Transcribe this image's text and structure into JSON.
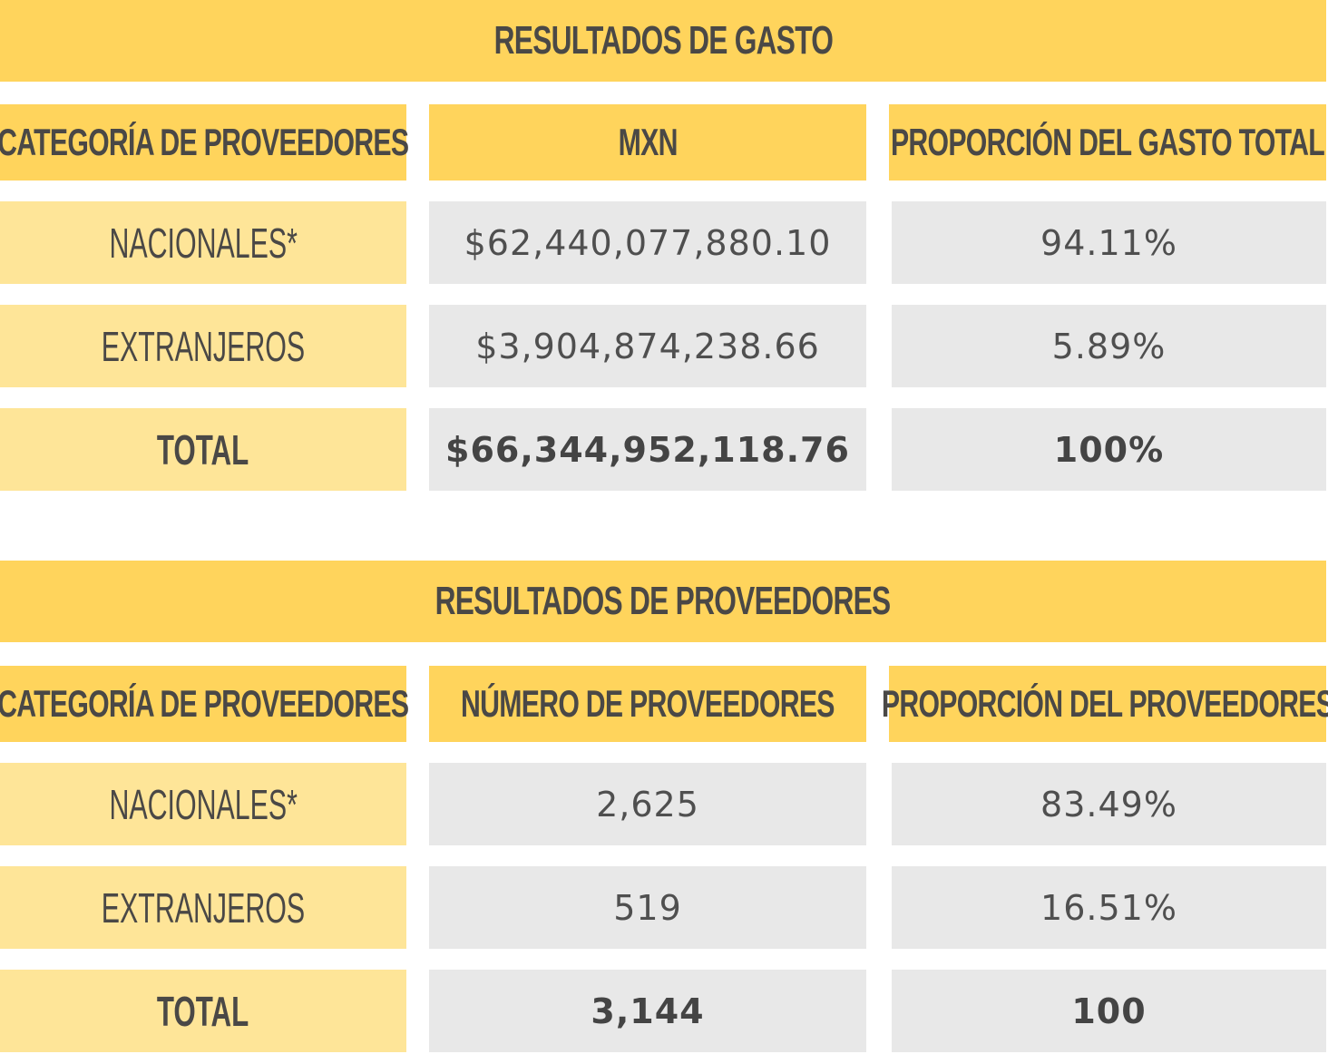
{
  "spend": {
    "title": "RESULTADOS DE GASTO",
    "headers": [
      "CATEGORÍA DE PROVEEDORES",
      "MXN",
      "PROPORCIÓN DEL GASTO TOTAL"
    ],
    "rows": [
      {
        "label": "NACIONALES*",
        "amount": "$62,440,077,880.10",
        "share": "94.11%"
      },
      {
        "label": "EXTRANJEROS",
        "amount": "$3,904,874,238.66",
        "share": "5.89%"
      },
      {
        "label": "TOTAL",
        "amount": "$66,344,952,118.76",
        "share": "100%"
      }
    ]
  },
  "suppliers": {
    "title": "RESULTADOS DE PROVEEDORES",
    "headers": [
      "CATEGORÍA DE PROVEEDORES",
      "NÚMERO DE PROVEEDORES",
      "PROPORCIÓN DEL PROVEEDORES"
    ],
    "rows": [
      {
        "label": "NACIONALES*",
        "count": "2,625",
        "share": "83.49%"
      },
      {
        "label": "EXTRANJEROS",
        "count": "519",
        "share": "16.51%"
      },
      {
        "label": "TOTAL",
        "count": "3,144",
        "share": "100"
      }
    ]
  },
  "colors": {
    "header_yellow": "#ffd45c",
    "label_yellow": "#fee598",
    "value_gray": "#e8e8e8",
    "text": "#4a4846"
  }
}
